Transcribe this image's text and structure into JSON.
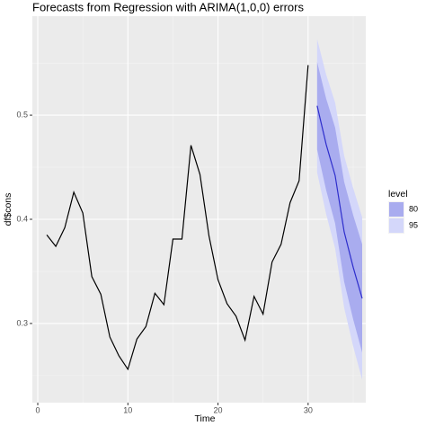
{
  "chart_data": {
    "type": "line",
    "title": "Forecasts from Regression with ARIMA(1,0,0) errors",
    "x_label": "Time",
    "y_label": "df$cons",
    "x": [
      1,
      2,
      3,
      4,
      5,
      6,
      7,
      8,
      9,
      10,
      11,
      12,
      13,
      14,
      15,
      16,
      17,
      18,
      19,
      20,
      21,
      22,
      23,
      24,
      25,
      26,
      27,
      28,
      29,
      30
    ],
    "values": [
      0.385,
      0.374,
      0.392,
      0.426,
      0.406,
      0.345,
      0.328,
      0.287,
      0.269,
      0.256,
      0.285,
      0.297,
      0.329,
      0.318,
      0.381,
      0.381,
      0.471,
      0.443,
      0.384,
      0.342,
      0.319,
      0.307,
      0.284,
      0.326,
      0.309,
      0.359,
      0.376,
      0.416,
      0.437,
      0.548
    ],
    "color": "#000000",
    "forecast": {
      "x": [
        31,
        32,
        33,
        34,
        35,
        36
      ],
      "values": [
        0.509,
        0.472,
        0.442,
        0.388,
        0.354,
        0.324
      ],
      "color": "#2e2ecc"
    },
    "legend_title": "level",
    "bands": [
      {
        "name": "80",
        "color": "#a9acef",
        "x": [
          31,
          32,
          33,
          34,
          35,
          36
        ],
        "lower": [
          0.467,
          0.428,
          0.396,
          0.34,
          0.304,
          0.272
        ],
        "upper": [
          0.551,
          0.516,
          0.488,
          0.436,
          0.404,
          0.376
        ]
      },
      {
        "name": "95",
        "color": "#d4d7fa",
        "x": [
          31,
          32,
          33,
          34,
          35,
          36
        ],
        "lower": [
          0.445,
          0.405,
          0.372,
          0.315,
          0.278,
          0.246
        ],
        "upper": [
          0.573,
          0.539,
          0.512,
          0.461,
          0.43,
          0.402
        ]
      }
    ],
    "xlim": [
      -0.6,
      36.4
    ],
    "ylim": [
      0.224,
      0.595
    ],
    "xticks": [
      0,
      10,
      20,
      30
    ],
    "yticks": [
      0.3,
      0.4,
      0.5
    ],
    "grid": true
  }
}
